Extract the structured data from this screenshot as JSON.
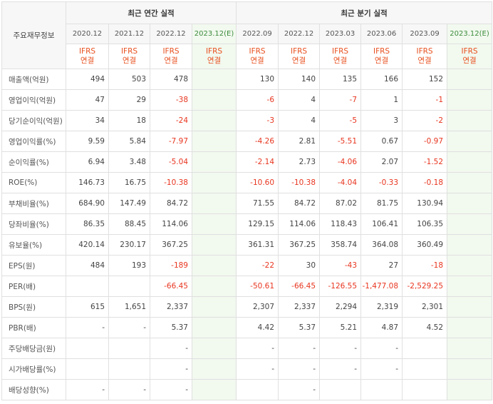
{
  "header": {
    "corner_label": "주요재무정보",
    "annual_group": "최근 연간 실적",
    "quarter_group": "최근 분기 실적",
    "annual_periods": [
      "2020.12",
      "2021.12",
      "2022.12",
      "2023.12(E)"
    ],
    "quarter_periods": [
      "2022.09",
      "2022.12",
      "2023.03",
      "2023.06",
      "2023.09",
      "2023.12(E)"
    ],
    "accounting_line1": "IFRS",
    "accounting_line2": "연결"
  },
  "rows": [
    {
      "label": "매출액(억원)",
      "values": [
        "494",
        "503",
        "478",
        "",
        "130",
        "140",
        "135",
        "166",
        "152",
        ""
      ]
    },
    {
      "label": "영업이익(억원)",
      "values": [
        "47",
        "29",
        "-38",
        "",
        "-6",
        "4",
        "-7",
        "1",
        "-1",
        ""
      ]
    },
    {
      "label": "당기순이익(억원)",
      "values": [
        "34",
        "18",
        "-24",
        "",
        "-3",
        "4",
        "-5",
        "3",
        "-2",
        ""
      ]
    },
    {
      "label": "영업이익률(%)",
      "values": [
        "9.59",
        "5.84",
        "-7.97",
        "",
        "-4.26",
        "2.81",
        "-5.51",
        "0.67",
        "-0.97",
        ""
      ]
    },
    {
      "label": "순이익률(%)",
      "values": [
        "6.94",
        "3.48",
        "-5.04",
        "",
        "-2.14",
        "2.73",
        "-4.06",
        "2.07",
        "-1.52",
        ""
      ]
    },
    {
      "label": "ROE(%)",
      "values": [
        "146.73",
        "16.75",
        "-10.38",
        "",
        "-10.60",
        "-10.38",
        "-4.04",
        "-0.33",
        "-0.18",
        ""
      ]
    },
    {
      "label": "부채비율(%)",
      "values": [
        "684.90",
        "147.49",
        "84.72",
        "",
        "71.55",
        "84.72",
        "87.02",
        "81.75",
        "130.94",
        ""
      ]
    },
    {
      "label": "당좌비율(%)",
      "values": [
        "86.35",
        "88.45",
        "114.06",
        "",
        "129.15",
        "114.06",
        "118.43",
        "106.41",
        "106.35",
        ""
      ]
    },
    {
      "label": "유보율(%)",
      "values": [
        "420.14",
        "230.17",
        "367.25",
        "",
        "361.31",
        "367.25",
        "358.74",
        "364.08",
        "360.49",
        ""
      ]
    },
    {
      "label": "EPS(원)",
      "values": [
        "484",
        "193",
        "-189",
        "",
        "-22",
        "30",
        "-43",
        "27",
        "-18",
        ""
      ]
    },
    {
      "label": "PER(배)",
      "values": [
        "",
        "",
        "-66.45",
        "",
        "-50.61",
        "-66.45",
        "-126.55",
        "-1,477.08",
        "-2,529.25",
        ""
      ]
    },
    {
      "label": "BPS(원)",
      "values": [
        "615",
        "1,651",
        "2,337",
        "",
        "2,307",
        "2,337",
        "2,294",
        "2,319",
        "2,301",
        ""
      ]
    },
    {
      "label": "PBR(배)",
      "values": [
        "-",
        "-",
        "5.37",
        "",
        "4.42",
        "5.37",
        "5.21",
        "4.87",
        "4.52",
        ""
      ]
    },
    {
      "label": "주당배당금(원)",
      "values": [
        "",
        "",
        "-",
        "",
        "-",
        "-",
        "-",
        "-",
        "",
        ""
      ]
    },
    {
      "label": "시가배당률(%)",
      "values": [
        "",
        "",
        "-",
        "",
        "-",
        "-",
        "-",
        "-",
        "",
        ""
      ]
    },
    {
      "label": "배당성향(%)",
      "values": [
        "-",
        "-",
        "-",
        "",
        "",
        "-",
        "",
        "",
        "",
        ""
      ]
    }
  ]
}
